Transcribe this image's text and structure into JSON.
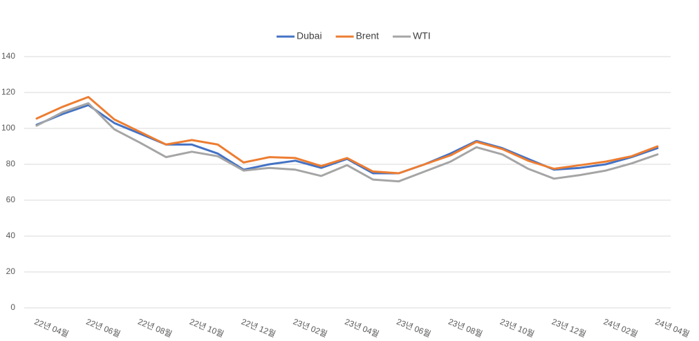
{
  "chart_data": {
    "type": "line",
    "categories": [
      "22년 04월",
      null,
      "22년 06월",
      null,
      "22년 08월",
      null,
      "22년 10월",
      null,
      "22년 12월",
      null,
      "23년 02월",
      null,
      "23년 04월",
      null,
      "23년 06월",
      null,
      "23년 08월",
      null,
      "23년 10월",
      null,
      "23년 12월",
      null,
      "24년 02월",
      null,
      "24년 04월"
    ],
    "series": [
      {
        "name": "Dubai",
        "color": "#4472c4",
        "values": [
          102,
          108,
          113,
          103,
          97,
          91,
          91,
          86,
          77,
          80,
          82,
          78,
          83,
          75,
          75,
          80,
          86,
          93,
          89,
          83,
          77,
          78,
          80,
          84,
          89
        ]
      },
      {
        "name": "Brent",
        "color": "#ed7d31",
        "values": [
          105.5,
          112,
          117.5,
          105,
          98,
          91,
          93.5,
          91,
          81,
          84,
          83.5,
          79,
          83.5,
          76,
          75,
          80,
          85,
          92.5,
          88.5,
          82,
          77.5,
          79.5,
          81.5,
          84.5,
          90
        ]
      },
      {
        "name": "WTI",
        "color": "#a5a5a5",
        "values": [
          101.5,
          109,
          114,
          99.5,
          92,
          84,
          87,
          84.5,
          76.5,
          78,
          77,
          73.5,
          79.5,
          71.5,
          70.5,
          76,
          81.5,
          89.5,
          85.5,
          77.5,
          72,
          74,
          76.5,
          80.5,
          85.5
        ]
      }
    ],
    "ylim": [
      0,
      140
    ],
    "yticks": [
      0,
      20,
      40,
      60,
      80,
      100,
      120,
      140
    ],
    "grid": true,
    "legend": "top"
  }
}
